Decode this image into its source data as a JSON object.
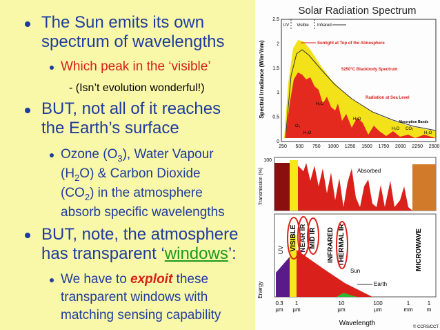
{
  "left": {
    "point1": [
      "The Sun emits its own",
      "spectrum of wavelengths"
    ],
    "point1Sub": "Which peak in the ‘visible’",
    "point1SubSub": "- (Isn’t evolution wonderful!)",
    "point2": [
      "BUT, not all of it reaches",
      "the Earth’s surface"
    ],
    "point2Sub": [
      [
        "Ozone (O",
        "3",
        "), Water Vapour"
      ],
      [
        "(H",
        "2",
        "O) & Carbon Dioxide"
      ],
      [
        "(CO",
        "2",
        ") in the atmosphere"
      ],
      [
        "absorb specific wavelengths"
      ]
    ],
    "point3": [
      "BUT, note, the atmosphere",
      "has transparent ‘",
      "windows",
      "’:"
    ],
    "point3Sub": [
      "We have to ",
      "exploit",
      " these",
      "transparent windows with",
      "matching sensing capability"
    ]
  },
  "figure": {
    "spectrum": {
      "title": "Solar Radiation Spectrum",
      "yLabel": "Spectral Irradiance (W/m²/nm)",
      "yTicks": [
        "2.5",
        "2",
        "1.5",
        "1",
        "0.5",
        "0"
      ],
      "xTicks": [
        "250",
        "500",
        "750",
        "1000",
        "1250",
        "1500",
        "1750",
        "2000",
        "2250",
        "2500"
      ],
      "bands": [
        "UV",
        "Visible",
        "Infrared"
      ],
      "annotations": [
        "Sunlight at Top of the Atmosphere",
        "5250°C Blackbody Spectrum",
        "Radiation at Sea Level",
        "Absorption Bands"
      ],
      "molecules": [
        "H₂O",
        "O₃",
        "H₂O",
        "H₂O",
        "H₂O",
        "CO₂",
        "H₂O"
      ]
    },
    "transmission": {
      "yLabel": "Transmission (%)",
      "tick": "100",
      "label": "Absorbed"
    },
    "energy": {
      "yLabel": "Energy",
      "regions": [
        "UV",
        "VISIBLE",
        "NEAR IR",
        "MID IR",
        "INFRARED",
        "THERMAL IR",
        "MICROWAVE"
      ],
      "sources": [
        "Sun",
        "Earth"
      ],
      "xTicks": [
        [
          "0.3",
          "µm"
        ],
        [
          "1",
          "µm"
        ],
        [
          "10",
          "µm"
        ],
        [
          "100",
          "µm"
        ],
        [
          "1",
          "mm"
        ],
        [
          "1",
          "m"
        ]
      ],
      "xLabel": "Wavelength",
      "credit": "© CCRS/CCT"
    }
  }
}
